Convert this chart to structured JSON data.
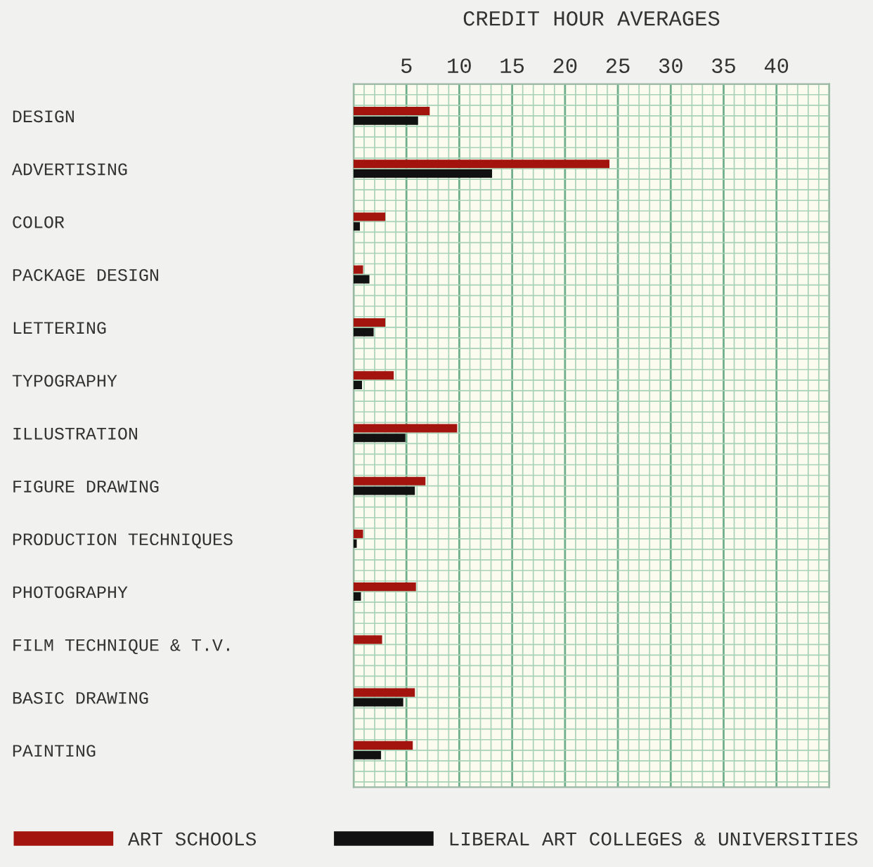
{
  "chart_data": {
    "type": "bar",
    "orientation": "horizontal",
    "title": "CREDIT HOUR AVERAGES",
    "categories": [
      "DESIGN",
      "ADVERTISING",
      "COLOR",
      "PACKAGE DESIGN",
      "LETTERING",
      "TYPOGRAPHY",
      "ILLUSTRATION",
      "FIGURE DRAWING",
      "PRODUCTION TECHNIQUES",
      "PHOTOGRAPHY",
      "FILM TECHNIQUE & T.V.",
      "BASIC DRAWING",
      "PAINTING"
    ],
    "series": [
      {
        "name": "ART SCHOOLS",
        "color": "#a3140f",
        "values": [
          7.2,
          24.2,
          3.0,
          0.9,
          3.0,
          3.8,
          9.8,
          6.8,
          0.9,
          5.9,
          2.7,
          5.8,
          5.6
        ]
      },
      {
        "name": "LIBERAL ART COLLEGES & UNIVERSITIES",
        "color": "#111111",
        "values": [
          6.1,
          13.1,
          0.6,
          1.5,
          1.9,
          0.8,
          4.9,
          5.8,
          0.3,
          0.7,
          null,
          4.7,
          2.6
        ]
      }
    ],
    "xlim": [
      0,
      45
    ],
    "xticks": [
      5,
      10,
      15,
      20,
      25,
      30,
      35,
      40
    ],
    "grid": true,
    "legend": "bottom"
  }
}
